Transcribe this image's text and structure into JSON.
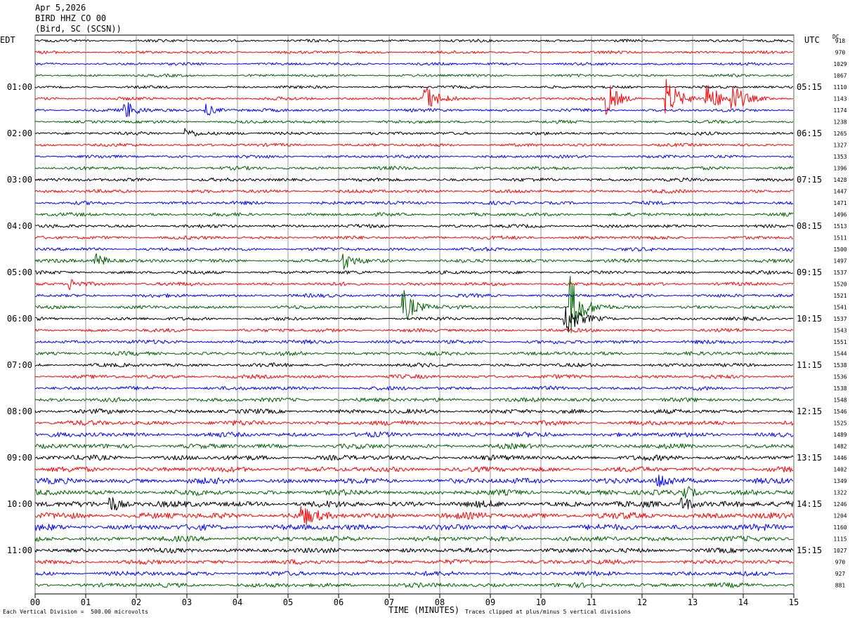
{
  "header": {
    "date": "Apr 5,2026",
    "station": "BIRD HHZ CO 00",
    "location": "(Bird, SC (SCSN))"
  },
  "left_timezone": "EDT",
  "right_timezone": "UTC",
  "dc_label": "DC",
  "footer": {
    "scale": "Each Vertical Division =  500.00 microvolts",
    "clip": "Traces clipped at plus/minus 5 vertical divisions"
  },
  "chart_data": {
    "type": "line",
    "title": "",
    "xlabel": "TIME (MINUTES)",
    "xlim": [
      0,
      15
    ],
    "x_ticks": [
      "00",
      "01",
      "02",
      "03",
      "04",
      "05",
      "06",
      "07",
      "08",
      "09",
      "10",
      "11",
      "12",
      "13",
      "14",
      "15"
    ],
    "rows_per_hour": 4,
    "minutes_per_row": 15,
    "trace_colors": [
      "#000000",
      "#ff0000",
      "#0000ff",
      "#006400"
    ],
    "left_hour_labels": [
      "01:00",
      "02:00",
      "03:00",
      "04:00",
      "05:00",
      "06:00",
      "07:00",
      "08:00",
      "09:00",
      "10:00",
      "11:00"
    ],
    "right_hour_labels": [
      "05:15",
      "06:15",
      "07:15",
      "08:15",
      "09:15",
      "10:15",
      "11:15",
      "12:15",
      "13:15",
      "14:15",
      "15:15"
    ],
    "dc_offsets": [
      918,
      970,
      1029,
      1067,
      1110,
      1143,
      1174,
      1238,
      1265,
      1327,
      1353,
      1396,
      1428,
      1447,
      1471,
      1496,
      1513,
      1511,
      1500,
      1497,
      1537,
      1520,
      1521,
      1541,
      1537,
      1543,
      1551,
      1544,
      1538,
      1536,
      1538,
      1548,
      1546,
      1525,
      1489,
      1482,
      1446,
      1402,
      1349,
      1322,
      1246,
      1204,
      1160,
      1115,
      1027,
      970,
      927,
      881
    ],
    "noise_level": [
      0.8,
      0.8,
      0.8,
      0.8,
      0.8,
      0.9,
      0.9,
      0.9,
      0.9,
      0.9,
      0.9,
      1.0,
      1.0,
      1.0,
      1.0,
      1.0,
      1.0,
      1.0,
      1.0,
      1.0,
      1.0,
      1.0,
      1.0,
      1.0,
      1.0,
      1.0,
      1.1,
      1.1,
      1.1,
      1.1,
      1.1,
      1.2,
      1.3,
      1.4,
      1.4,
      1.4,
      1.5,
      1.5,
      1.6,
      1.6,
      1.8,
      1.8,
      1.7,
      1.5,
      1.4,
      1.3,
      1.3,
      1.3
    ],
    "events": [
      {
        "row": 5,
        "minute": 7.7,
        "amp": 5
      },
      {
        "row": 5,
        "minute": 11.3,
        "amp": 6
      },
      {
        "row": 5,
        "minute": 12.5,
        "amp": 7
      },
      {
        "row": 5,
        "minute": 13.3,
        "amp": 6
      },
      {
        "row": 5,
        "minute": 13.8,
        "amp": 5
      },
      {
        "row": 6,
        "minute": 1.8,
        "amp": 3
      },
      {
        "row": 6,
        "minute": 3.4,
        "amp": 2
      },
      {
        "row": 8,
        "minute": 3.0,
        "amp": 2
      },
      {
        "row": 19,
        "minute": 1.2,
        "amp": 3
      },
      {
        "row": 19,
        "minute": 6.1,
        "amp": 3
      },
      {
        "row": 21,
        "minute": 0.7,
        "amp": 2
      },
      {
        "row": 23,
        "minute": 7.3,
        "amp": 6
      },
      {
        "row": 23,
        "minute": 10.6,
        "amp": 11
      },
      {
        "row": 24,
        "minute": 10.5,
        "amp": 6
      },
      {
        "row": 38,
        "minute": 12.3,
        "amp": 3
      },
      {
        "row": 39,
        "minute": 12.8,
        "amp": 3
      },
      {
        "row": 40,
        "minute": 1.5,
        "amp": 3
      },
      {
        "row": 40,
        "minute": 12.8,
        "amp": 3
      },
      {
        "row": 41,
        "minute": 5.3,
        "amp": 3
      }
    ]
  }
}
